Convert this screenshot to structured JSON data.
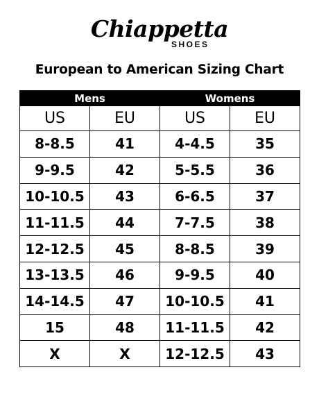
{
  "brand": {
    "name": "Chiappetta",
    "sub": "SHOES"
  },
  "title": "European to American Sizing Chart",
  "chart_data": {
    "type": "table",
    "groups": [
      "Mens",
      "Womens"
    ],
    "columns": [
      "US",
      "EU",
      "US",
      "EU"
    ],
    "rows": [
      [
        "8-8.5",
        "41",
        "4-4.5",
        "35"
      ],
      [
        "9-9.5",
        "42",
        "5-5.5",
        "36"
      ],
      [
        "10-10.5",
        "43",
        "6-6.5",
        "37"
      ],
      [
        "11-11.5",
        "44",
        "7-7.5",
        "38"
      ],
      [
        "12-12.5",
        "45",
        "8-8.5",
        "39"
      ],
      [
        "13-13.5",
        "46",
        "9-9.5",
        "40"
      ],
      [
        "14-14.5",
        "47",
        "10-10.5",
        "41"
      ],
      [
        "15",
        "48",
        "11-11.5",
        "42"
      ],
      [
        "X",
        "X",
        "12-12.5",
        "43"
      ]
    ]
  }
}
